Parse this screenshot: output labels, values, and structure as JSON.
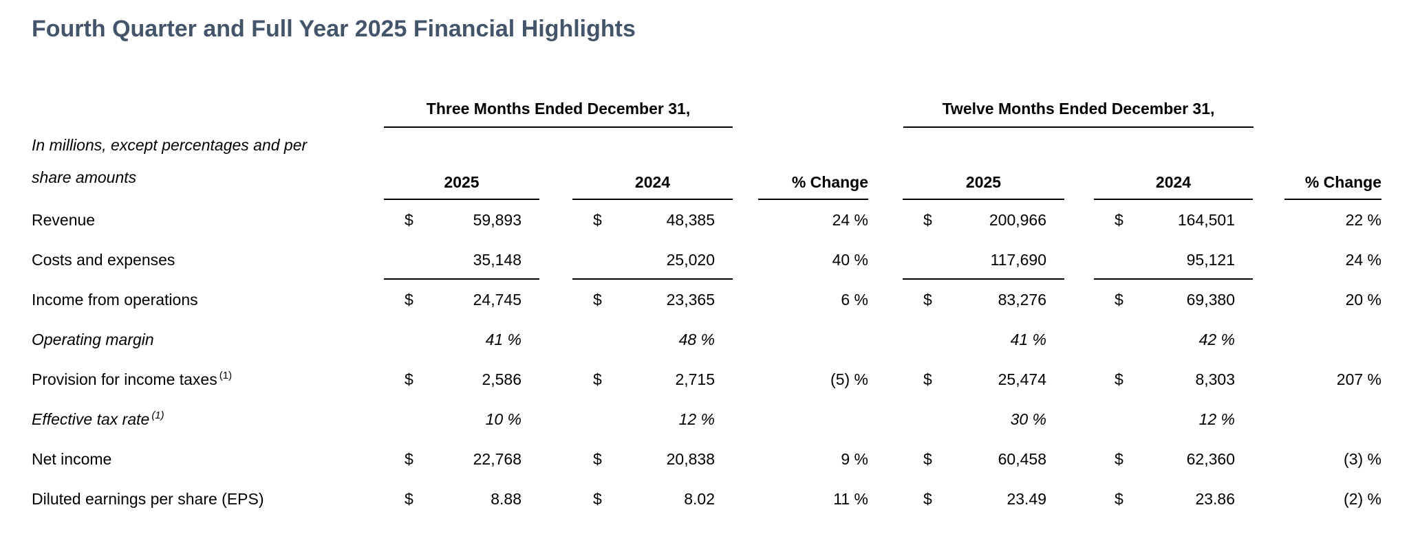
{
  "title": "Fourth Quarter and Full Year 2025 Financial Highlights",
  "colors": {
    "title_accent": "#44546A",
    "text": "#000000",
    "rule": "#000000"
  },
  "table": {
    "note_line1": "In millions, except percentages and per",
    "note_line2": "share amounts",
    "group_headers": [
      "Three Months Ended December 31,",
      "Twelve Months Ended December 31,"
    ],
    "column_headers": [
      "2025",
      "2024",
      "% Change",
      "2025",
      "2024",
      "% Change"
    ],
    "rows": [
      {
        "label": "Revenue",
        "sup": "",
        "c1_d": "$",
        "c1_v": "59,893",
        "c2_d": "$",
        "c2_v": "48,385",
        "pc1": "24 %",
        "c3_d": "$",
        "c3_v": "200,966",
        "c4_d": "$",
        "c4_v": "164,501",
        "pc2": "22 %"
      },
      {
        "label": "Costs and expenses",
        "sup": "",
        "c1_d": "",
        "c1_v": "35,148",
        "c2_d": "",
        "c2_v": "25,020",
        "pc1": "40 %",
        "c3_d": "",
        "c3_v": "117,690",
        "c4_d": "",
        "c4_v": "95,121",
        "pc2": "24 %"
      },
      {
        "label": "Income from operations",
        "sup": "",
        "c1_d": "$",
        "c1_v": "24,745",
        "c2_d": "$",
        "c2_v": "23,365",
        "pc1": "6 %",
        "c3_d": "$",
        "c3_v": "83,276",
        "c4_d": "$",
        "c4_v": "69,380",
        "pc2": "20 %"
      },
      {
        "label": "Operating margin",
        "sup": "",
        "c1_d": "",
        "c1_v": "41 %",
        "c2_d": "",
        "c2_v": "48 %",
        "pc1": "",
        "c3_d": "",
        "c3_v": "41 %",
        "c4_d": "",
        "c4_v": "42 %",
        "pc2": ""
      },
      {
        "label": "Provision for income taxes",
        "sup": "(1)",
        "c1_d": "$",
        "c1_v": "2,586",
        "c2_d": "$",
        "c2_v": "2,715",
        "pc1": "(5) %",
        "c3_d": "$",
        "c3_v": "25,474",
        "c4_d": "$",
        "c4_v": "8,303",
        "pc2": "207 %"
      },
      {
        "label": "Effective tax rate",
        "sup": "(1)",
        "c1_d": "",
        "c1_v": "10 %",
        "c2_d": "",
        "c2_v": "12 %",
        "pc1": "",
        "c3_d": "",
        "c3_v": "30 %",
        "c4_d": "",
        "c4_v": "12 %",
        "pc2": ""
      },
      {
        "label": "Net income",
        "sup": "",
        "c1_d": "$",
        "c1_v": "22,768",
        "c2_d": "$",
        "c2_v": "20,838",
        "pc1": "9 %",
        "c3_d": "$",
        "c3_v": "60,458",
        "c4_d": "$",
        "c4_v": "62,360",
        "pc2": "(3) %"
      },
      {
        "label": "Diluted earnings per share (EPS)",
        "sup": "",
        "c1_d": "$",
        "c1_v": "8.88",
        "c2_d": "$",
        "c2_v": "8.02",
        "pc1": "11 %",
        "c3_d": "$",
        "c3_v": "23.49",
        "c4_d": "$",
        "c4_v": "23.86",
        "pc2": "(2) %"
      }
    ]
  }
}
